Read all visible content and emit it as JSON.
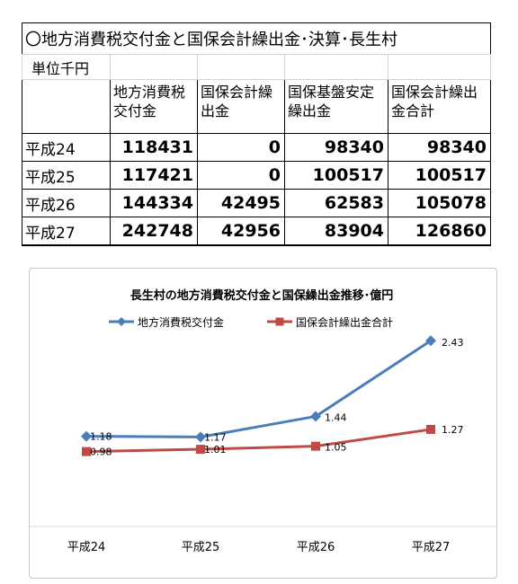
{
  "table": {
    "title": "〇地方消費税交付金と国保会計繰出金･決算･長生村",
    "unit": "単位千円",
    "headers": [
      "",
      "地方消費税\n交付金",
      "国保会計繰\n出金",
      "国保基盤安定\n繰出金",
      "国保会計繰出\n金合計"
    ],
    "rows": [
      {
        "year": "平成24",
        "values": [
          "118431",
          "0",
          "98340",
          "98340"
        ]
      },
      {
        "year": "平成25",
        "values": [
          "117421",
          "0",
          "100517",
          "100517"
        ]
      },
      {
        "year": "平成26",
        "values": [
          "144334",
          "42495",
          "62583",
          "105078"
        ]
      },
      {
        "year": "平成27",
        "values": [
          "242748",
          "42956",
          "83904",
          "126860"
        ]
      }
    ]
  },
  "chart_data": {
    "type": "line",
    "title": "長生村の地方消費税交付金と国保繰出金推移･億円",
    "categories": [
      "平成24",
      "平成25",
      "平成26",
      "平成27"
    ],
    "series": [
      {
        "name": "地方消費税交付金",
        "values": [
          1.18,
          1.17,
          1.44,
          2.43
        ],
        "color": "#4a7ebb",
        "marker": "diamond"
      },
      {
        "name": "国保会計繰出金合計",
        "values": [
          0.98,
          1.01,
          1.05,
          1.27
        ],
        "color": "#be4b48",
        "marker": "square"
      }
    ],
    "data_labels": [
      [
        "1.18",
        "1.17",
        "1.44",
        "2.43"
      ],
      [
        "0.98",
        "1.01",
        "1.05",
        "1.27"
      ]
    ],
    "ylim": [
      0,
      3
    ],
    "grid": false,
    "legend": "top"
  }
}
